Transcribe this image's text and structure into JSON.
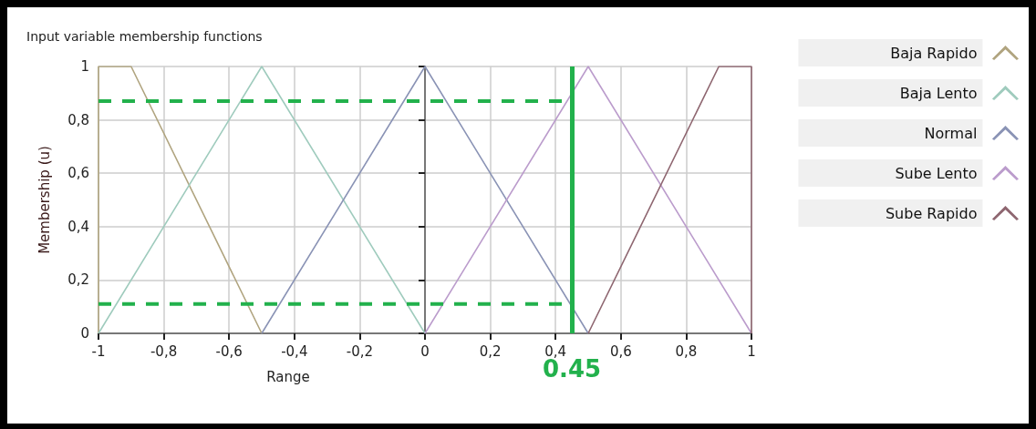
{
  "chart_data": {
    "type": "line",
    "title": "Input variable membership functions",
    "xlabel": "Range",
    "ylabel": "Membership (u)",
    "xlim": [
      -1,
      1
    ],
    "xticks": [
      -1,
      {
        "value": -0.8,
        "label": "-0,8"
      },
      {
        "value": -0.6,
        "label": "-0,6"
      },
      {
        "value": -0.4,
        "label": "-0,4"
      },
      {
        "value": -0.2,
        "label": "-0,2"
      },
      0,
      {
        "value": 0.2,
        "label": "0,2"
      },
      {
        "value": 0.4,
        "label": "0,4"
      },
      {
        "value": 0.6,
        "label": "0,6"
      },
      {
        "value": 0.8,
        "label": "0,8"
      },
      1
    ],
    "ylim": [
      0,
      1
    ],
    "yticks": [
      0,
      {
        "value": 0.2,
        "label": "0,2"
      },
      {
        "value": 0.4,
        "label": "0,4"
      },
      {
        "value": 0.6,
        "label": "0,6"
      },
      {
        "value": 0.8,
        "label": "0,8"
      },
      1
    ],
    "grid": true,
    "legend": "right",
    "marker": "none",
    "series": [
      {
        "name": "Baja Rapido",
        "color": "#b0a47f",
        "x": [
          -1,
          -1,
          -0.9,
          -0.5
        ],
        "values": [
          0,
          1,
          1,
          0
        ]
      },
      {
        "name": "Baja Lento",
        "color": "#9fcbbd",
        "x": [
          -1,
          -0.5,
          0
        ],
        "values": [
          0,
          1,
          0
        ]
      },
      {
        "name": "Normal",
        "color": "#8a93b5",
        "x": [
          -0.5,
          0,
          0.5
        ],
        "values": [
          0,
          1,
          0
        ]
      },
      {
        "name": "Sube Lento",
        "color": "#bb9ccc",
        "x": [
          0,
          0.5,
          1
        ],
        "values": [
          0,
          1,
          0
        ]
      },
      {
        "name": "Sube Rapido",
        "color": "#8e6670",
        "x": [
          0.5,
          0.9,
          1,
          1
        ],
        "values": [
          0,
          1,
          1,
          0
        ]
      },
      {
        "color": "#22b14c",
        "line_style": "dashed",
        "x": [
          -1,
          0.45
        ],
        "values": [
          0.87,
          0.87
        ]
      },
      {
        "color": "#22b14c",
        "line_style": "dashed",
        "x": [
          -1,
          0.45
        ],
        "values": [
          0.11,
          0.11
        ]
      }
    ],
    "ref_lines": [
      {
        "axis": "x",
        "value": 0.45,
        "label": "0.45",
        "color": "#22b14c"
      }
    ]
  }
}
